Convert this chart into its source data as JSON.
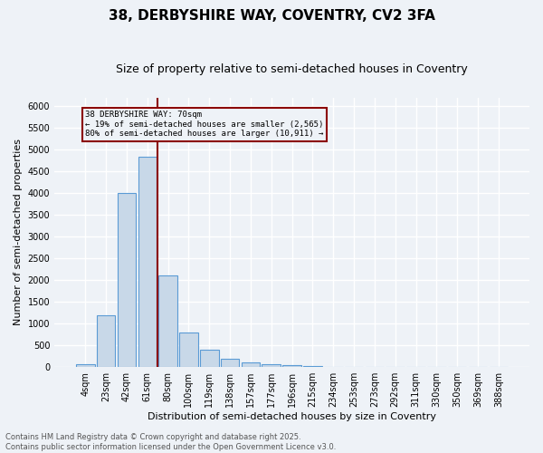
{
  "title_line1": "38, DERBYSHIRE WAY, COVENTRY, CV2 3FA",
  "title_line2": "Size of property relative to semi-detached houses in Coventry",
  "xlabel": "Distribution of semi-detached houses by size in Coventry",
  "ylabel": "Number of semi-detached properties",
  "categories": [
    "4sqm",
    "23sqm",
    "42sqm",
    "61sqm",
    "80sqm",
    "100sqm",
    "119sqm",
    "138sqm",
    "157sqm",
    "177sqm",
    "196sqm",
    "215sqm",
    "234sqm",
    "253sqm",
    "273sqm",
    "292sqm",
    "311sqm",
    "330sqm",
    "350sqm",
    "369sqm",
    "388sqm"
  ],
  "values": [
    70,
    1200,
    4000,
    4850,
    2100,
    800,
    400,
    200,
    110,
    60,
    40,
    15,
    8,
    4,
    3,
    2,
    2,
    1,
    1,
    1,
    1
  ],
  "bar_color": "#c8d8e8",
  "bar_edge_color": "#5b9bd5",
  "vline_color": "#8b0000",
  "vline_x": 3.5,
  "annotation_text": "38 DERBYSHIRE WAY: 70sqm\n← 19% of semi-detached houses are smaller (2,565)\n80% of semi-detached houses are larger (10,911) →",
  "box_color": "#8b0000",
  "ylim": [
    0,
    6200
  ],
  "yticks": [
    0,
    500,
    1000,
    1500,
    2000,
    2500,
    3000,
    3500,
    4000,
    4500,
    5000,
    5500,
    6000
  ],
  "footer_text": "Contains HM Land Registry data © Crown copyright and database right 2025.\nContains public sector information licensed under the Open Government Licence v3.0.",
  "background_color": "#eef2f7",
  "grid_color": "#ffffff",
  "title_fontsize": 11,
  "subtitle_fontsize": 9,
  "axis_fontsize": 8,
  "tick_fontsize": 7,
  "footer_fontsize": 6
}
